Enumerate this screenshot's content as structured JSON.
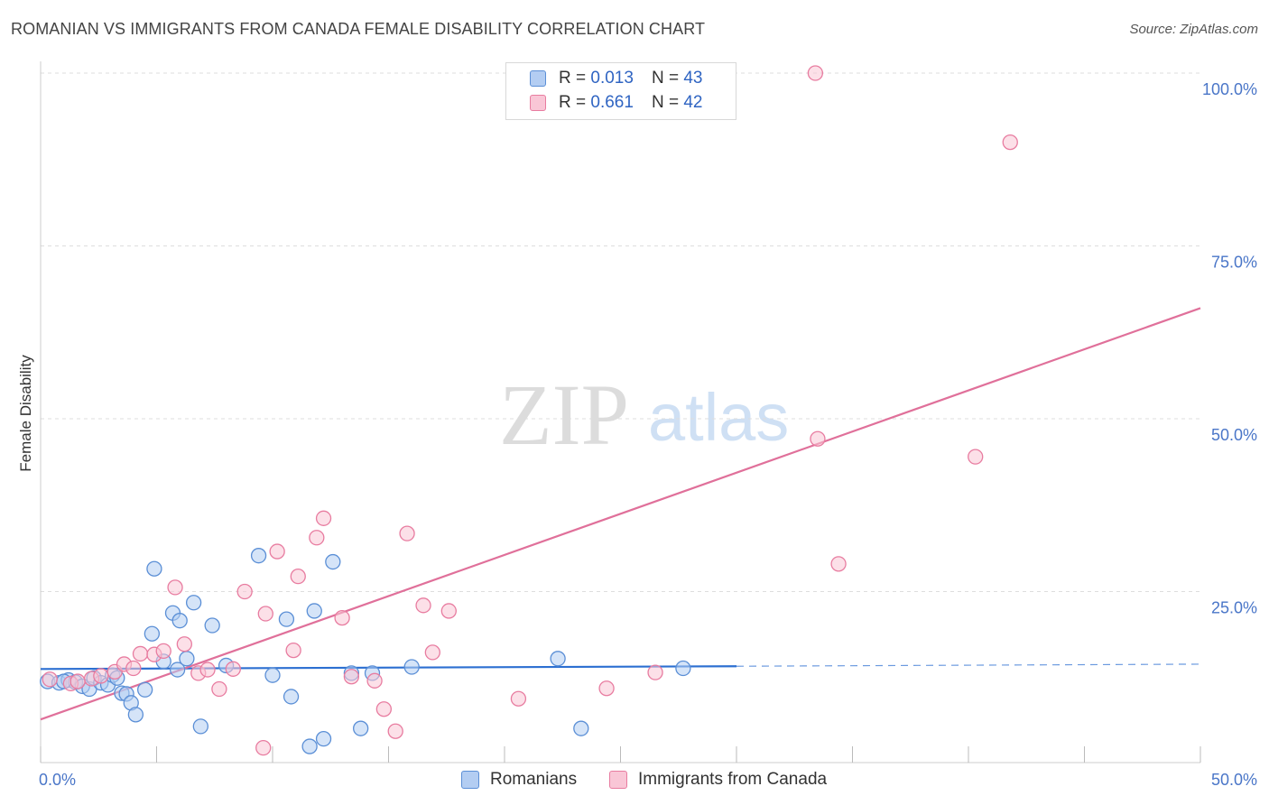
{
  "header": {
    "title": "ROMANIAN VS IMMIGRANTS FROM CANADA FEMALE DISABILITY CORRELATION CHART",
    "source": "Source: ZipAtlas.com"
  },
  "watermark": {
    "zip": "ZIP",
    "atlas": "atlas"
  },
  "legend": {
    "rows": [
      {
        "r_label": "R =",
        "r_value": "0.013",
        "n_label": "N =",
        "n_value": "43"
      },
      {
        "r_label": "R =",
        "r_value": "0.661",
        "n_label": "N =",
        "n_value": "42"
      }
    ]
  },
  "bottom_legend": {
    "romanians": "Romanians",
    "canada": "Immigrants from Canada"
  },
  "colors": {
    "blue_fill": "#b3cdf2",
    "blue_stroke": "#5b8fd6",
    "blue_line": "#2c6fd1",
    "pink_fill": "#f9c6d6",
    "pink_stroke": "#e87ca0",
    "pink_line": "#e0709a",
    "grid": "#dddddd",
    "tick_text": "#4a76c8"
  },
  "chart_data": {
    "type": "scatter",
    "title": "ROMANIAN VS IMMIGRANTS FROM CANADA FEMALE DISABILITY CORRELATION CHART",
    "xlabel": "",
    "ylabel": "Female Disability",
    "xlim": [
      0,
      50
    ],
    "ylim": [
      0,
      102
    ],
    "x_tick_labels": [
      "0.0%",
      "50.0%"
    ],
    "y_ticks": [
      25,
      50,
      75,
      100
    ],
    "y_tick_labels": [
      "25.0%",
      "50.0%",
      "75.0%",
      "100.0%"
    ],
    "grid": true,
    "legend_position": "top-center",
    "series": [
      {
        "name": "Romanians",
        "R": 0.013,
        "N": 43,
        "trend": {
          "x0": 0,
          "y0": 13.8,
          "x1": 30,
          "y1": 14.2,
          "dashed_to": 50,
          "dashed_y": 14.5
        },
        "points": [
          [
            0.3,
            12.0
          ],
          [
            0.8,
            11.8
          ],
          [
            1.2,
            12.2
          ],
          [
            1.5,
            11.9
          ],
          [
            1.8,
            11.3
          ],
          [
            2.1,
            10.9
          ],
          [
            2.3,
            12.5
          ],
          [
            2.6,
            11.8
          ],
          [
            2.9,
            11.5
          ],
          [
            3.1,
            12.9
          ],
          [
            3.3,
            12.5
          ],
          [
            3.5,
            10.3
          ],
          [
            3.7,
            10.2
          ],
          [
            3.9,
            8.9
          ],
          [
            4.1,
            7.2
          ],
          [
            4.5,
            10.8
          ],
          [
            4.9,
            28.3
          ],
          [
            4.8,
            18.9
          ],
          [
            5.3,
            14.9
          ],
          [
            5.7,
            21.9
          ],
          [
            5.9,
            13.7
          ],
          [
            6.0,
            20.8
          ],
          [
            6.3,
            15.3
          ],
          [
            6.6,
            23.4
          ],
          [
            6.9,
            5.5
          ],
          [
            7.4,
            20.1
          ],
          [
            8.0,
            14.3
          ],
          [
            9.4,
            30.2
          ],
          [
            10.0,
            12.9
          ],
          [
            10.6,
            21.0
          ],
          [
            10.8,
            9.8
          ],
          [
            11.6,
            2.6
          ],
          [
            11.8,
            22.2
          ],
          [
            12.2,
            3.7
          ],
          [
            12.6,
            29.3
          ],
          [
            13.4,
            13.2
          ],
          [
            13.8,
            5.2
          ],
          [
            14.3,
            13.2
          ],
          [
            16.0,
            14.1
          ],
          [
            22.3,
            15.3
          ],
          [
            23.3,
            5.2
          ],
          [
            27.7,
            13.9
          ],
          [
            1.0,
            12.0
          ]
        ]
      },
      {
        "name": "Immigrants from Canada",
        "R": 0.661,
        "N": 42,
        "trend": {
          "x0": 0,
          "y0": 6.5,
          "x1": 50,
          "y1": 66.0
        },
        "points": [
          [
            0.4,
            12.3
          ],
          [
            1.3,
            11.7
          ],
          [
            2.2,
            12.4
          ],
          [
            2.6,
            12.8
          ],
          [
            3.2,
            13.4
          ],
          [
            3.6,
            14.5
          ],
          [
            4.0,
            13.9
          ],
          [
            4.3,
            16.0
          ],
          [
            4.9,
            15.9
          ],
          [
            5.3,
            16.4
          ],
          [
            5.8,
            25.6
          ],
          [
            6.2,
            17.4
          ],
          [
            6.8,
            13.2
          ],
          [
            7.2,
            13.7
          ],
          [
            7.7,
            10.9
          ],
          [
            8.3,
            13.8
          ],
          [
            8.8,
            25.0
          ],
          [
            9.6,
            2.4
          ],
          [
            9.7,
            21.8
          ],
          [
            10.2,
            30.8
          ],
          [
            10.9,
            16.5
          ],
          [
            11.1,
            27.2
          ],
          [
            11.9,
            32.8
          ],
          [
            12.2,
            35.6
          ],
          [
            13.0,
            21.2
          ],
          [
            13.4,
            12.7
          ],
          [
            14.4,
            12.1
          ],
          [
            14.8,
            8.0
          ],
          [
            15.3,
            4.8
          ],
          [
            15.8,
            33.4
          ],
          [
            16.5,
            23.0
          ],
          [
            16.9,
            16.2
          ],
          [
            17.6,
            22.2
          ],
          [
            20.6,
            9.5
          ],
          [
            24.4,
            11.0
          ],
          [
            26.5,
            13.3
          ],
          [
            33.4,
            100.0
          ],
          [
            33.5,
            47.1
          ],
          [
            34.4,
            29.0
          ],
          [
            40.3,
            44.5
          ],
          [
            41.8,
            90.0
          ],
          [
            1.6,
            12.0
          ]
        ]
      }
    ]
  }
}
